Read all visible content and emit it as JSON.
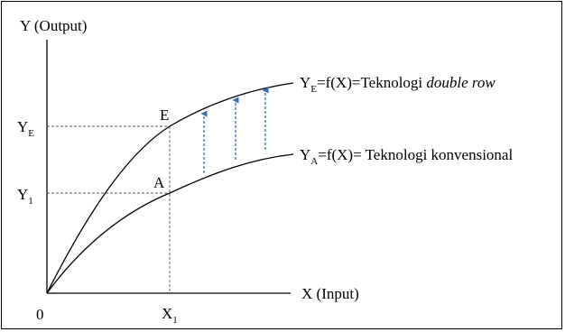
{
  "axes": {
    "y_title": "Y (Output)",
    "x_title": "X (Input)",
    "origin": "0",
    "x1": {
      "base": "X",
      "sub": "1"
    },
    "ye": {
      "base": "Y",
      "sub": "E"
    },
    "y1": {
      "base": "Y",
      "sub": "1"
    }
  },
  "points": {
    "e": "E",
    "a": "A"
  },
  "curves": {
    "upper": {
      "prefix": "Y",
      "sub": "E",
      "eq": "=f(X)=Teknologi ",
      "italic": "double row"
    },
    "lower": {
      "prefix": "Y",
      "sub": "A",
      "eq": "=f(X)= Teknologi konvensional"
    }
  },
  "colors": {
    "axis": "#000000",
    "guide": "#555555",
    "arrow": "#2e6fb5"
  }
}
